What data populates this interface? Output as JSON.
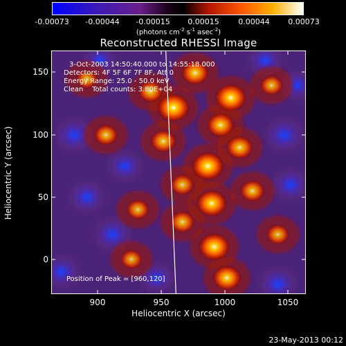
{
  "colorbar": {
    "ticks": [
      "-0.00073",
      "-0.00044",
      "-0.00015",
      "0.00015",
      "0.00044",
      "0.00073"
    ],
    "unit_prefix": "(photons cm",
    "unit_sup1": "-2",
    "unit_mid1": " s",
    "unit_sup2": "-1",
    "unit_mid2": " asec",
    "unit_sup3": "-2",
    "unit_suffix": ")"
  },
  "chart_data": {
    "type": "heatmap",
    "title": "Reconstructed RHESSI Image",
    "xlabel": "Heliocentric X (arcsec)",
    "ylabel": "Heliocentric Y (arcsec)",
    "xlim": [
      862,
      1062
    ],
    "ylim": [
      -28,
      168
    ],
    "xticks": [
      "900",
      "950",
      "1000",
      "1050"
    ],
    "yticks": [
      "0",
      "50",
      "100",
      "150"
    ],
    "color_range": [
      -0.00073,
      0.00073
    ],
    "limb_line": [
      [
        952,
        168
      ],
      [
        960,
        -28
      ]
    ],
    "peak": [
      960,
      120
    ],
    "bright_sources": [
      [
        958,
        122,
        1.0
      ],
      [
        1003,
        130,
        0.95
      ],
      [
        985,
        75,
        1.0
      ],
      [
        988,
        45,
        0.9
      ],
      [
        990,
        10,
        0.95
      ],
      [
        975,
        150,
        0.75
      ],
      [
        940,
        135,
        0.6
      ],
      [
        950,
        95,
        0.65
      ],
      [
        1010,
        90,
        0.7
      ],
      [
        1020,
        55,
        0.6
      ],
      [
        1000,
        -15,
        0.8
      ],
      [
        965,
        30,
        0.6
      ],
      [
        930,
        40,
        0.5
      ],
      [
        905,
        100,
        0.55
      ],
      [
        890,
        145,
        0.45
      ],
      [
        925,
        0,
        0.45
      ],
      [
        1040,
        20,
        0.5
      ],
      [
        1035,
        140,
        0.5
      ],
      [
        965,
        60,
        0.55
      ],
      [
        995,
        108,
        0.75
      ]
    ],
    "dark_sources": [
      [
        880,
        100,
        0.9
      ],
      [
        890,
        50,
        0.8
      ],
      [
        910,
        20,
        0.9
      ],
      [
        870,
        -10,
        0.8
      ],
      [
        900,
        160,
        0.6
      ],
      [
        1045,
        100,
        0.9
      ],
      [
        1050,
        60,
        0.8
      ],
      [
        1040,
        -20,
        0.9
      ],
      [
        1030,
        160,
        0.7
      ],
      [
        920,
        75,
        0.7
      ],
      [
        945,
        -15,
        0.6
      ],
      [
        1055,
        140,
        0.6
      ]
    ]
  },
  "annotations": {
    "time": "3-Oct-2003 14:50:40.000 to 14:55:18.000",
    "detectors": "Detectors: 4F 5F 6F 7F 8F, Att 0",
    "energy": "Energy Range: 25.0 - 50.0 keV",
    "clean": "Clean    Total counts: 3.80E+04",
    "peak": "Position of Peak = [960,120]"
  },
  "timestamp": "23-May-2013 00:12"
}
